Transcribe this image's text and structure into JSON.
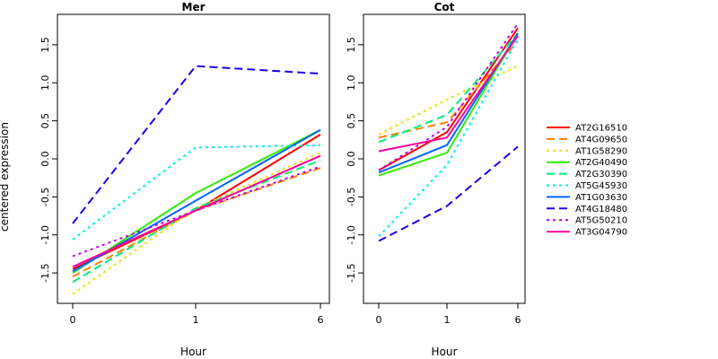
{
  "figure": {
    "ylabel": "centered expression",
    "xlabel": "Hour"
  },
  "chart_data": {
    "type": "line",
    "ylabel": "centered expression",
    "xlabel": "Hour",
    "x": [
      "0",
      "1",
      "6"
    ],
    "legend_position": "right",
    "grid": false,
    "series": [
      {
        "name": "AT2G16510",
        "color": "#ff0000",
        "dash": "solid"
      },
      {
        "name": "AT4G09650",
        "color": "#ff8000",
        "dash": "long"
      },
      {
        "name": "AT1G58290",
        "color": "#e5e500",
        "dash": "dot"
      },
      {
        "name": "AT2G40490",
        "color": "#33ee00",
        "dash": "solid"
      },
      {
        "name": "AT2G30390",
        "color": "#00ee77",
        "dash": "long"
      },
      {
        "name": "AT5G45930",
        "color": "#00eeee",
        "dash": "dot"
      },
      {
        "name": "AT1G03630",
        "color": "#0066ff",
        "dash": "solid"
      },
      {
        "name": "AT4G18480",
        "color": "#1a00ee",
        "dash": "long"
      },
      {
        "name": "AT5G50210",
        "color": "#bb00ee",
        "dash": "dot"
      },
      {
        "name": "AT3G04790",
        "color": "#ff0099",
        "dash": "solid"
      }
    ],
    "panels": [
      {
        "title": "Mer",
        "ylim": [
          -1.9,
          1.9
        ],
        "yticks": [
          "-1.5",
          "-1.0",
          "-0.5",
          "0.0",
          "0.5",
          "1.0",
          "1.5"
        ],
        "ytick_values": [
          -1.5,
          -1.0,
          -0.5,
          0.0,
          0.5,
          1.0,
          1.5
        ],
        "xticks": [
          "0",
          "1",
          "6"
        ],
        "values": {
          "AT2G16510": [
            -1.45,
            -0.68,
            0.32
          ],
          "AT4G09650": [
            -1.55,
            -0.68,
            -0.12
          ],
          "AT1G58290": [
            -1.78,
            -0.65,
            0.08
          ],
          "AT2G40490": [
            -1.5,
            -0.45,
            0.38
          ],
          "AT2G30390": [
            -1.62,
            -0.65,
            -0.02
          ],
          "AT5G45930": [
            -1.06,
            0.15,
            0.18
          ],
          "AT1G03630": [
            -1.48,
            -0.55,
            0.38
          ],
          "AT4G18480": [
            -0.85,
            1.22,
            1.12
          ],
          "AT5G50210": [
            -1.28,
            -0.68,
            -0.1
          ],
          "AT3G04790": [
            -1.42,
            -0.68,
            0.04
          ]
        }
      },
      {
        "title": "Cot",
        "ylim": [
          -1.9,
          1.9
        ],
        "yticks": [
          "-1.5",
          "-1.0",
          "-0.5",
          "0.0",
          "0.5",
          "1.0",
          "1.5"
        ],
        "ytick_values": [
          -1.5,
          -1.0,
          -0.5,
          0.0,
          0.5,
          1.0,
          1.5
        ],
        "xticks": [
          "0",
          "1",
          "6"
        ],
        "values": {
          "AT2G16510": [
            -0.15,
            0.35,
            1.72
          ],
          "AT4G09650": [
            0.28,
            0.48,
            1.55
          ],
          "AT1G58290": [
            0.32,
            0.78,
            1.22
          ],
          "AT2G40490": [
            -0.22,
            0.08,
            1.65
          ],
          "AT2G30390": [
            0.22,
            0.58,
            1.65
          ],
          "AT5G45930": [
            -1.02,
            -0.08,
            1.58
          ],
          "AT1G03630": [
            -0.18,
            0.18,
            1.65
          ],
          "AT4G18480": [
            -1.08,
            -0.62,
            0.16
          ],
          "AT5G50210": [
            -0.15,
            0.42,
            1.78
          ],
          "AT3G04790": [
            0.1,
            0.28,
            1.62
          ]
        }
      }
    ]
  }
}
